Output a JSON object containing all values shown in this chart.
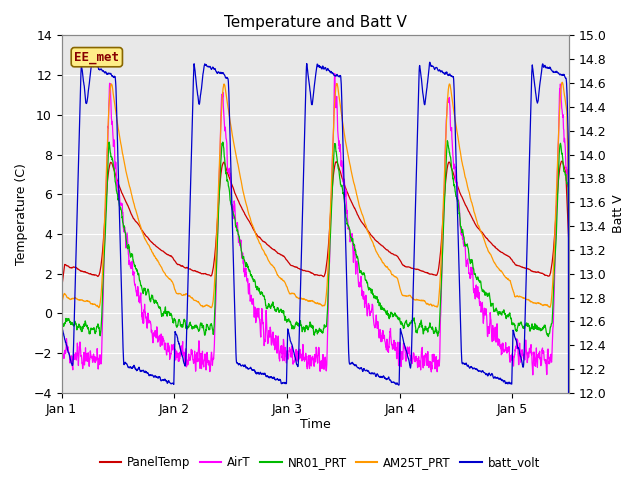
{
  "title": "Temperature and Batt V",
  "xlabel": "Time",
  "ylabel_left": "Temperature (C)",
  "ylabel_right": "Batt V",
  "ylim_left": [
    -4,
    14
  ],
  "ylim_right": [
    12.0,
    15.0
  ],
  "yticks_left": [
    -4,
    -2,
    0,
    2,
    4,
    6,
    8,
    10,
    12,
    14
  ],
  "yticks_right": [
    12.0,
    12.2,
    12.4,
    12.6,
    12.8,
    13.0,
    13.2,
    13.4,
    13.6,
    13.8,
    14.0,
    14.2,
    14.4,
    14.6,
    14.8,
    15.0
  ],
  "xlim": [
    0,
    4.5
  ],
  "xtick_positions": [
    0,
    1,
    2,
    3,
    4
  ],
  "xtick_labels": [
    "Jan 1",
    "Jan 2",
    "Jan 3",
    "Jan 4",
    "Jan 5"
  ],
  "colors": {
    "PanelTemp": "#cc0000",
    "AirT": "#ff00ff",
    "NR01_PRT": "#00bb00",
    "AM25T_PRT": "#ff9900",
    "batt_volt": "#0000cc"
  },
  "annotation_text": "EE_met",
  "annotation_box_facecolor": "#ffee88",
  "annotation_box_edgecolor": "#886600",
  "annotation_text_color": "#880000",
  "background_color": "#e8e8e8",
  "grid_color": "#ffffff",
  "title_fontsize": 11,
  "label_fontsize": 9,
  "tick_fontsize": 9
}
